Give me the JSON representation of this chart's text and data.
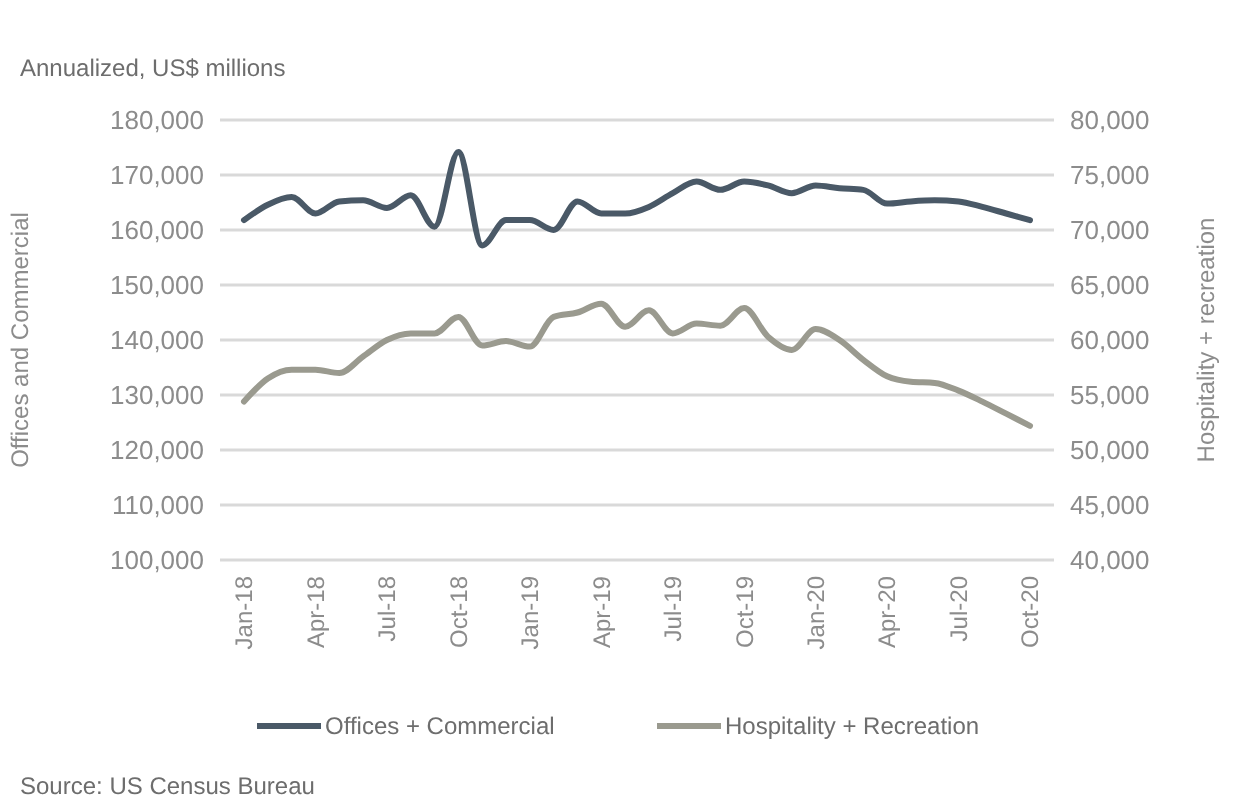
{
  "chart_data": {
    "type": "line",
    "title": "Annualized, US$ millions",
    "xlabel": null,
    "ylabel": "Offices and Commercial",
    "y2label": "Hospitality + recreation",
    "categories": [
      "Jan-18",
      null,
      null,
      "Apr-18",
      null,
      null,
      "Jul-18",
      null,
      null,
      "Oct-18",
      null,
      null,
      "Jan-19",
      null,
      null,
      "Apr-19",
      null,
      null,
      "Jul-19",
      null,
      null,
      "Oct-19",
      null,
      null,
      "Jan-20",
      null,
      null,
      "Apr-20",
      null,
      null,
      "Jul-20",
      null,
      null,
      "Oct-20"
    ],
    "series": [
      {
        "name": "Offices + Commercial",
        "color": "#4a5967",
        "values": [
          161800,
          164600,
          166000,
          163000,
          165200,
          165400,
          164000,
          166300,
          160600,
          174200,
          157200,
          161800,
          161800,
          160000,
          165200,
          163000,
          163000,
          164200,
          166700,
          168800,
          167300,
          168800,
          168100,
          166700,
          168100,
          167600,
          167300,
          164800,
          165200,
          165400,
          165200,
          164200,
          163000,
          161800
        ]
      },
      {
        "name": "Hospitality + Recreation",
        "color": "#9a9a8f",
        "axis": "y2",
        "values": [
          54400,
          56500,
          57300,
          57300,
          57000,
          58500,
          60000,
          60600,
          60600,
          62100,
          59500,
          59900,
          59400,
          62100,
          62500,
          63300,
          61200,
          62700,
          60600,
          61500,
          61300,
          62900,
          60300,
          59100,
          61000,
          60000,
          58200,
          56700,
          56200,
          56100,
          55400,
          54400,
          53300,
          52200
        ]
      }
    ],
    "ylim": [
      100000,
      180000
    ],
    "yticks": [
      {
        "value": 100000,
        "label": "100,000"
      },
      {
        "value": 110000,
        "label": "110,000"
      },
      {
        "value": 120000,
        "label": "120,000"
      },
      {
        "value": 130000,
        "label": "130,000"
      },
      {
        "value": 140000,
        "label": "140,000"
      },
      {
        "value": 150000,
        "label": "150,000"
      },
      {
        "value": 160000,
        "label": "160,000"
      },
      {
        "value": 170000,
        "label": "170,000"
      },
      {
        "value": 180000,
        "label": "180,000"
      }
    ],
    "y2lim": [
      40000,
      80000
    ],
    "y2ticks": [
      {
        "value": 40000,
        "label": "40,000"
      },
      {
        "value": 45000,
        "label": "45,000"
      },
      {
        "value": 50000,
        "label": "50,000"
      },
      {
        "value": 55000,
        "label": "55,000"
      },
      {
        "value": 60000,
        "label": "60,000"
      },
      {
        "value": 65000,
        "label": "65,000"
      },
      {
        "value": 70000,
        "label": "70,000"
      },
      {
        "value": 75000,
        "label": "75,000"
      },
      {
        "value": 80000,
        "label": "80,000"
      }
    ],
    "grid": "y",
    "legend": "bottom",
    "marker": "none",
    "line_style": "solid",
    "annotations": [
      "Source: US Census Bureau"
    ]
  }
}
